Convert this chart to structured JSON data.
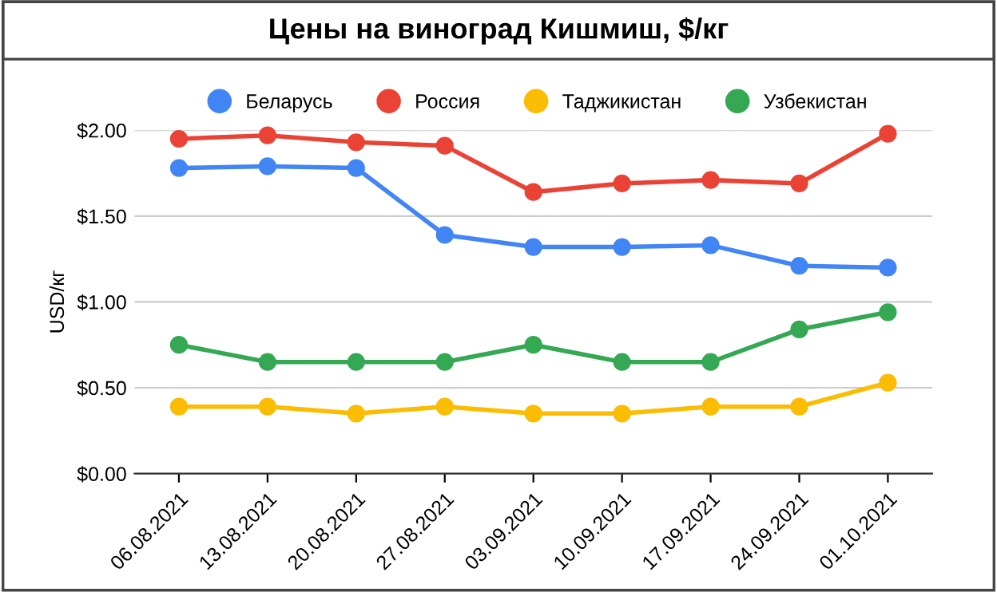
{
  "chart_data": {
    "type": "line",
    "title": "Цены на виноград Кишмиш, $/кг",
    "ylabel": "USD/кг",
    "categories": [
      "06.08.2021",
      "13.08.2021",
      "20.08.2021",
      "27.08.2021",
      "03.09.2021",
      "10.09.2021",
      "17.09.2021",
      "24.09.2021",
      "01.10.2021"
    ],
    "series": [
      {
        "name": "Беларусь",
        "color": "#4285f4",
        "values": [
          1.78,
          1.79,
          1.78,
          1.39,
          1.32,
          1.32,
          1.33,
          1.21,
          1.2
        ]
      },
      {
        "name": "Россия",
        "color": "#ea4335",
        "values": [
          1.95,
          1.97,
          1.93,
          1.91,
          1.64,
          1.69,
          1.71,
          1.69,
          1.98
        ]
      },
      {
        "name": "Таджикистан",
        "color": "#fbbc04",
        "values": [
          0.39,
          0.39,
          0.35,
          0.39,
          0.35,
          0.35,
          0.39,
          0.39,
          0.53
        ]
      },
      {
        "name": "Узбекистан",
        "color": "#34a853",
        "values": [
          0.75,
          0.65,
          0.65,
          0.65,
          0.75,
          0.65,
          0.65,
          0.84,
          0.94
        ]
      }
    ],
    "ylim": [
      0,
      2
    ],
    "yticks": [
      {
        "value": 0,
        "label": "$0.00"
      },
      {
        "value": 0.5,
        "label": "$0.50"
      },
      {
        "value": 1,
        "label": "$1.00"
      },
      {
        "value": 1.5,
        "label": "$1.50"
      },
      {
        "value": 2,
        "label": "$2.00"
      }
    ],
    "grid": "y",
    "legend": "top",
    "marker": "circle",
    "line_style": "solid"
  }
}
